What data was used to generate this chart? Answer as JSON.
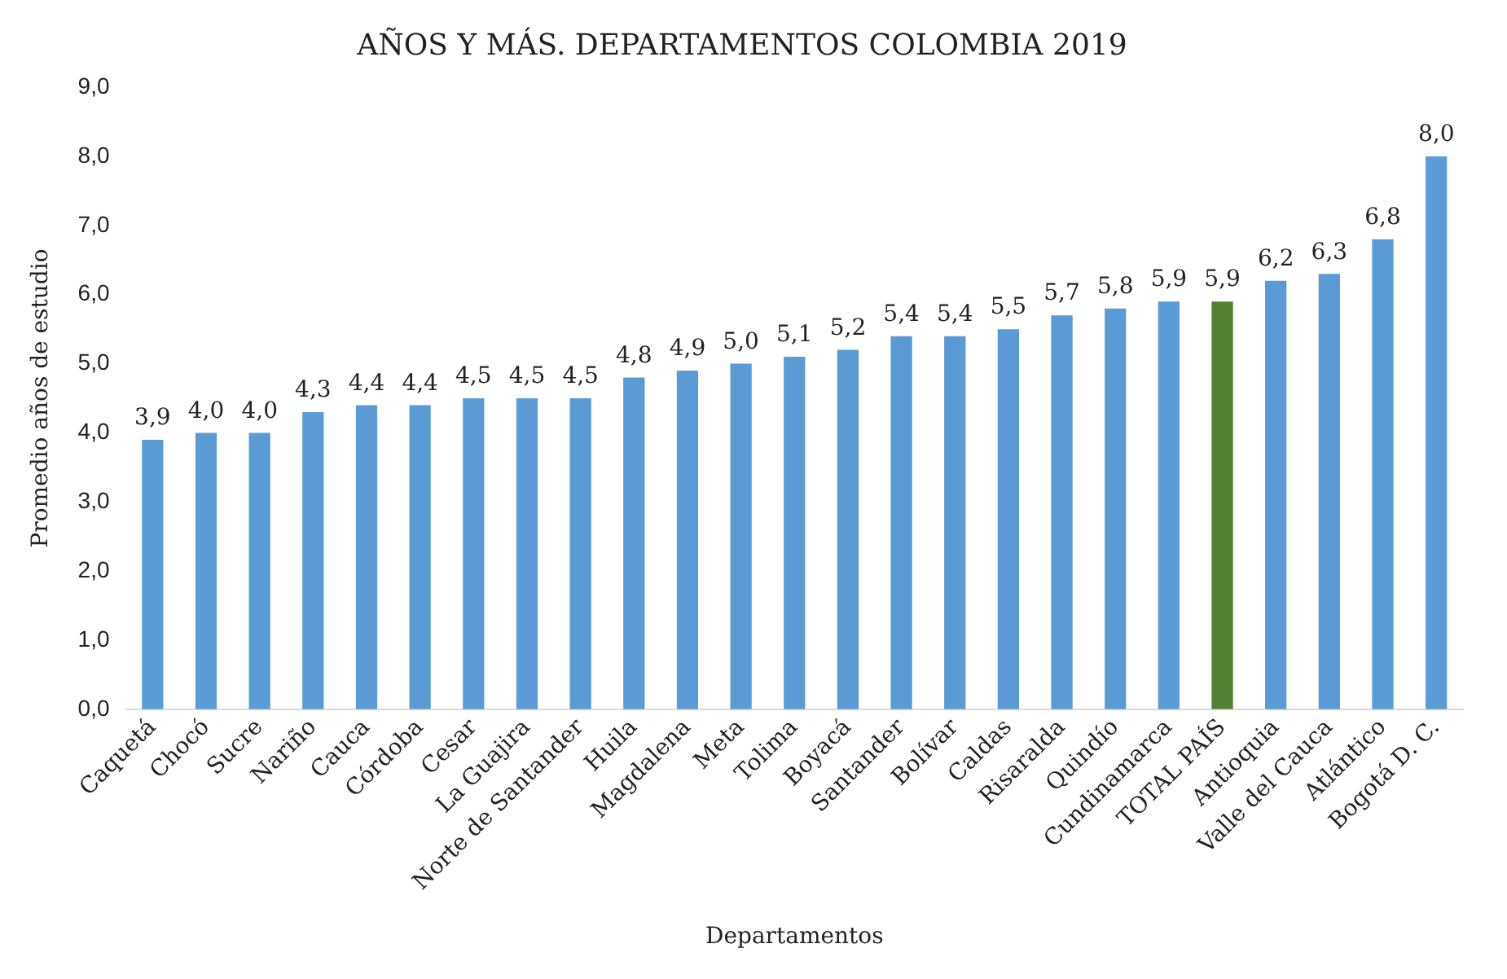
{
  "chart_data": {
    "type": "bar",
    "title": "AÑOS Y MÁS. DEPARTAMENTOS COLOMBIA 2019",
    "xlabel": "Departamentos",
    "ylabel": "Promedio años de estudio",
    "categories": [
      "Caquetá",
      "Chocó",
      "Sucre",
      "Nariño",
      "Cauca",
      "Córdoba",
      "Cesar",
      "La Guajira",
      "Norte de Santander",
      "Huila",
      "Magdalena",
      "Meta",
      "Tolima",
      "Boyacá",
      "Santander",
      "Bolívar",
      "Caldas",
      "Risaralda",
      "Quindío",
      "Cundinamarca",
      "TOTAL PAÍS",
      "Antioquia",
      "Valle del Cauca",
      "Atlántico",
      "Bogotá D. C."
    ],
    "values": [
      3.9,
      4.0,
      4.0,
      4.3,
      4.4,
      4.4,
      4.5,
      4.5,
      4.5,
      4.8,
      4.9,
      5.0,
      5.1,
      5.2,
      5.4,
      5.4,
      5.5,
      5.7,
      5.8,
      5.9,
      5.9,
      6.2,
      6.3,
      6.8,
      8.0
    ],
    "value_labels": [
      "3,9",
      "4,0",
      "4,0",
      "4,3",
      "4,4",
      "4,4",
      "4,5",
      "4,5",
      "4,5",
      "4,8",
      "4,9",
      "5,0",
      "5,1",
      "5,2",
      "5,4",
      "5,4",
      "5,5",
      "5,7",
      "5,8",
      "5,9",
      "5,9",
      "6,2",
      "6,3",
      "6,8",
      "8,0"
    ],
    "colors": [
      "#5b9bd5",
      "#5b9bd5",
      "#5b9bd5",
      "#5b9bd5",
      "#5b9bd5",
      "#5b9bd5",
      "#5b9bd5",
      "#5b9bd5",
      "#5b9bd5",
      "#5b9bd5",
      "#5b9bd5",
      "#5b9bd5",
      "#5b9bd5",
      "#5b9bd5",
      "#5b9bd5",
      "#5b9bd5",
      "#5b9bd5",
      "#5b9bd5",
      "#5b9bd5",
      "#5b9bd5",
      "#548235",
      "#5b9bd5",
      "#5b9bd5",
      "#5b9bd5",
      "#5b9bd5"
    ],
    "ylim": [
      0,
      9
    ],
    "yticks": [
      {
        "value": 0,
        "label": "0,0"
      },
      {
        "value": 1,
        "label": "1,0"
      },
      {
        "value": 2,
        "label": "2,0"
      },
      {
        "value": 3,
        "label": "3,0"
      },
      {
        "value": 4,
        "label": "4,0"
      },
      {
        "value": 5,
        "label": "5,0"
      },
      {
        "value": 6,
        "label": "6,0"
      },
      {
        "value": 7,
        "label": "7,0"
      },
      {
        "value": 8,
        "label": "8,0"
      },
      {
        "value": 9,
        "label": "9,0"
      }
    ],
    "grid": false,
    "legend": false
  }
}
